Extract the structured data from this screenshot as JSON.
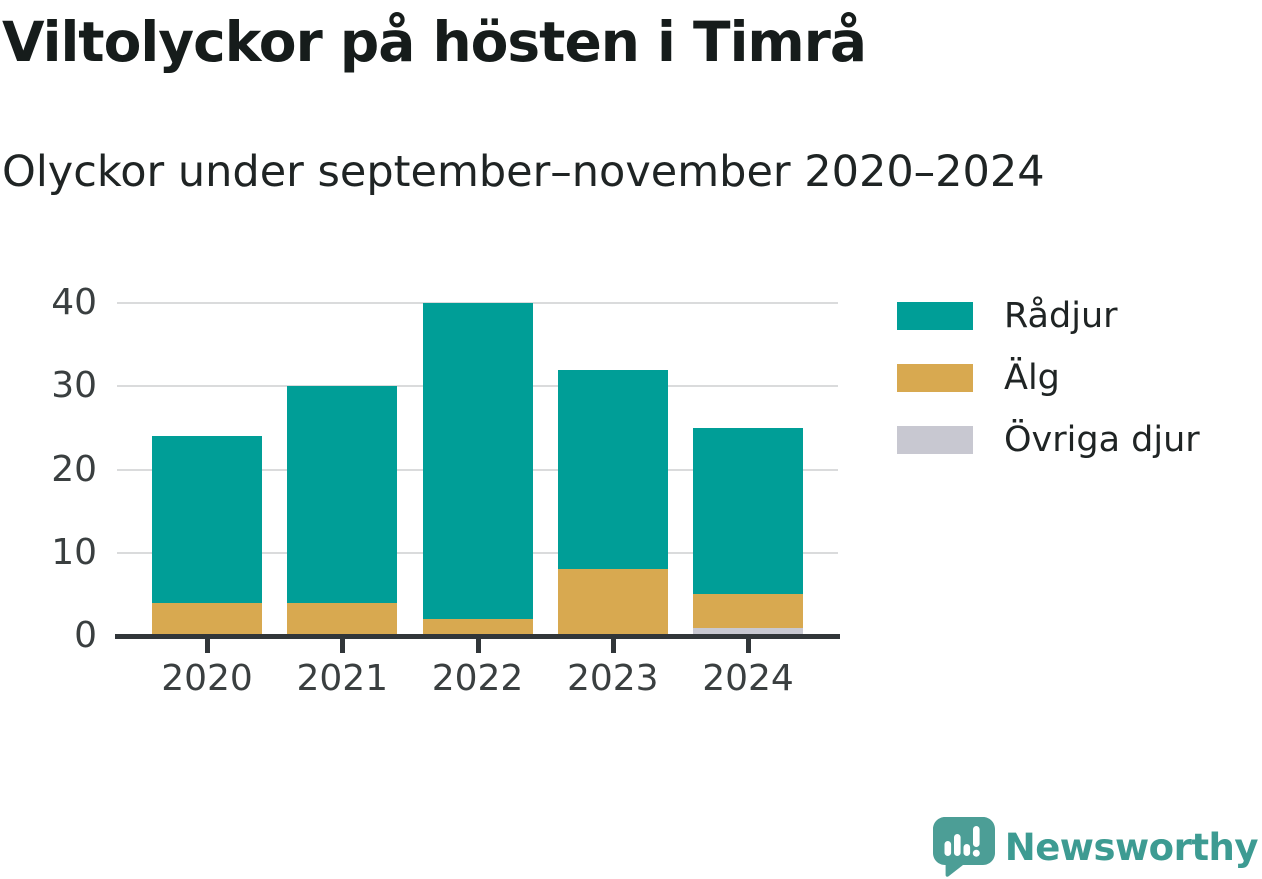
{
  "title": "Viltolyckor på hösten i Timrå",
  "subtitle": "Olyckor under september–november 2020–2024",
  "chart_data": {
    "type": "bar",
    "stacked": true,
    "title": "Viltolyckor på hösten i Timrå",
    "subtitle": "Olyckor under september–november 2020–2024",
    "categories": [
      "2020",
      "2021",
      "2022",
      "2023",
      "2024"
    ],
    "series": [
      {
        "name": "Rådjur",
        "color": "#009e97",
        "values": [
          20,
          26,
          38,
          24,
          20
        ]
      },
      {
        "name": "Älg",
        "color": "#d8a950",
        "values": [
          4,
          4,
          2,
          8,
          4
        ]
      },
      {
        "name": "Övriga djur",
        "color": "#c8c8d1",
        "values": [
          0,
          0,
          0,
          0,
          1
        ]
      }
    ],
    "totals": [
      24,
      30,
      40,
      32,
      25
    ],
    "stack_order_bottom_to_top": [
      "Övriga djur",
      "Älg",
      "Rådjur"
    ],
    "xlabel": "",
    "ylabel": "",
    "ylim": [
      0,
      40
    ],
    "yticks": [
      0,
      10,
      20,
      30,
      40
    ],
    "grid": true,
    "legend_position": "right"
  },
  "legend": {
    "items": [
      {
        "label": "Rådjur",
        "color": "#009e97"
      },
      {
        "label": "Älg",
        "color": "#d8a950"
      },
      {
        "label": "Övriga djur",
        "color": "#c8c8d1"
      }
    ]
  },
  "branding": {
    "name": "Newsworthy",
    "icon": "newsworthy-speech-bubble-bar-chart-icon",
    "icon_color": "#4c9e96",
    "text_color": "#3d9b92"
  },
  "style": {
    "background": "#ffffff",
    "title_color": "#161c1b",
    "text_color": "#1f2424",
    "axis_label_color": "#3a3f40",
    "axis_color": "#313639",
    "gridline_color": "#dadbdc"
  }
}
